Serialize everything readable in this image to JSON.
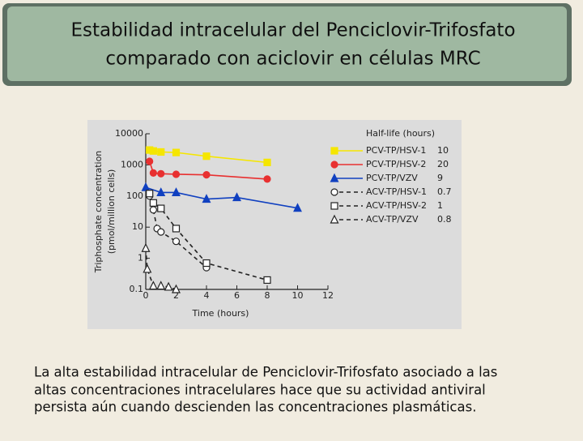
{
  "slide": {
    "title": [
      "Estabilidad intracelular del Penciclovir-Trifosfato",
      "comparado con aciclovir en células MRC"
    ],
    "caption": [
      "La alta estabilidad intracelular de Penciclovir-Trifosfato asociado a las",
      "altas concentraciones intracelulares hace que su actividad antiviral",
      "persista aún cuando descienden las concentraciones plasmáticas."
    ]
  },
  "chart_data": {
    "type": "line",
    "xlabel": "Time (hours)",
    "ylabel": [
      "Triphosphate concentration",
      "(pmol/million cells)"
    ],
    "legend_title": "Half-life (hours)",
    "xlim": [
      0,
      12
    ],
    "xticks": [
      0,
      2,
      4,
      6,
      8,
      10,
      12
    ],
    "ylim": [
      0.1,
      10000
    ],
    "yticks": [
      0.1,
      1,
      10,
      100,
      1000,
      10000
    ],
    "log_y": true,
    "series": [
      {
        "name": "PCV-TP/HSV-1",
        "half_life": "10",
        "color": "#f5e600",
        "marker": "square",
        "filled": true,
        "dashed": false,
        "x": [
          0.25,
          0.5,
          1,
          2,
          4,
          8
        ],
        "values": [
          3000,
          2800,
          2600,
          2500,
          1900,
          1200
        ]
      },
      {
        "name": "PCV-TP/HSV-2",
        "half_life": "20",
        "color": "#e83030",
        "marker": "circle",
        "filled": true,
        "dashed": false,
        "x": [
          0.25,
          0.5,
          1,
          2,
          4,
          8
        ],
        "values": [
          1300,
          550,
          520,
          500,
          480,
          350
        ]
      },
      {
        "name": "PCV-TP/VZV",
        "half_life": "9",
        "color": "#1040c0",
        "marker": "triangle",
        "filled": true,
        "dashed": false,
        "x": [
          0,
          1,
          2,
          4,
          6,
          10
        ],
        "values": [
          190,
          130,
          130,
          80,
          90,
          41
        ]
      },
      {
        "name": "ACV-TP/HSV-1",
        "half_life": "0.7",
        "color": "#222222",
        "marker": "circle",
        "filled": false,
        "dashed": true,
        "x": [
          0.25,
          0.5,
          0.75,
          1,
          2,
          4
        ],
        "values": [
          100,
          36,
          9,
          7,
          3.5,
          0.5
        ]
      },
      {
        "name": "ACV-TP/HSV-2",
        "half_life": "1",
        "color": "#222222",
        "marker": "square",
        "filled": false,
        "dashed": true,
        "x": [
          0.25,
          0.5,
          1,
          2,
          4,
          8
        ],
        "values": [
          120,
          60,
          40,
          9,
          0.7,
          0.2
        ]
      },
      {
        "name": "ACV-TP/VZV",
        "half_life": "0.8",
        "color": "#222222",
        "marker": "triangle",
        "filled": false,
        "dashed": true,
        "x": [
          0,
          0.1,
          0.5,
          1,
          1.5,
          2
        ],
        "values": [
          2.1,
          0.45,
          0.13,
          0.13,
          0.12,
          0.1
        ]
      }
    ]
  }
}
